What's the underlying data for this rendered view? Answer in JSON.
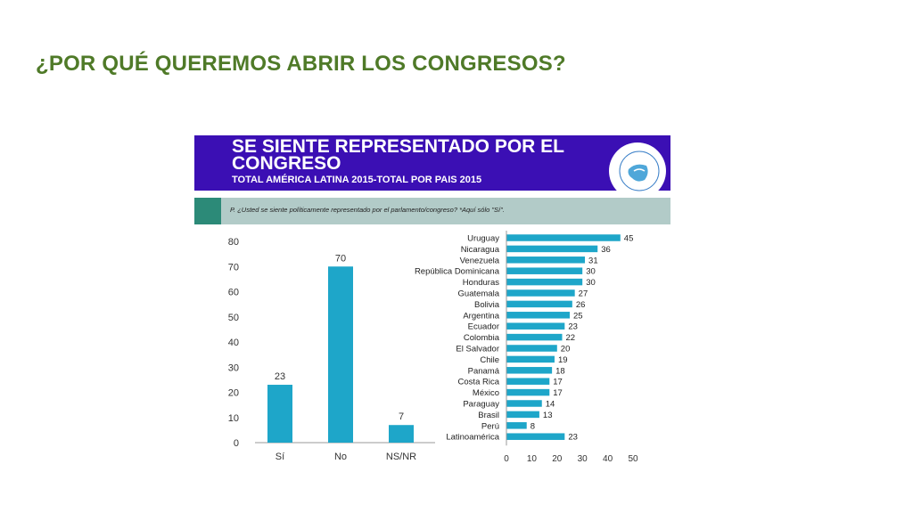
{
  "slide": {
    "title": "¿POR QUÉ QUEREMOS ABRIR LOS CONGRESOS?"
  },
  "banner": {
    "title": "SE SIENTE REPRESENTADO POR EL CONGRESO",
    "subtitle": "TOTAL AMÉRICA LATINA 2015-TOTAL POR PAIS 2015"
  },
  "question": "P. ¿Usted se siente políticamente representado por el parlamento/congreso? *Aquí sólo \"Sí\".",
  "colors": {
    "bar": "#1ea6c9",
    "title_green": "#4f7a28",
    "banner": "#3b0fb4"
  },
  "chart_data": [
    {
      "type": "bar",
      "categories": [
        "Sí",
        "No",
        "NS/NR"
      ],
      "values": [
        23,
        70,
        7
      ],
      "ylim": [
        0,
        80
      ],
      "yticks": [
        0,
        10,
        20,
        30,
        40,
        50,
        60,
        70,
        80
      ],
      "grid": false
    },
    {
      "type": "bar",
      "orientation": "horizontal",
      "categories": [
        "Uruguay",
        "Nicaragua",
        "Venezuela",
        "República Dominicana",
        "Honduras",
        "Guatemala",
        "Bolivia",
        "Argentina",
        "Ecuador",
        "Colombia",
        "El Salvador",
        "Chile",
        "Panamá",
        "Costa Rica",
        "México",
        "Paraguay",
        "Brasil",
        "Perú",
        "Latinoamérica"
      ],
      "values": [
        45,
        36,
        31,
        30,
        30,
        27,
        26,
        25,
        23,
        22,
        20,
        19,
        18,
        17,
        17,
        14,
        13,
        8,
        23
      ],
      "xlim": [
        0,
        50
      ],
      "xticks": [
        0,
        10,
        20,
        30,
        40,
        50
      ],
      "grid": false
    }
  ]
}
